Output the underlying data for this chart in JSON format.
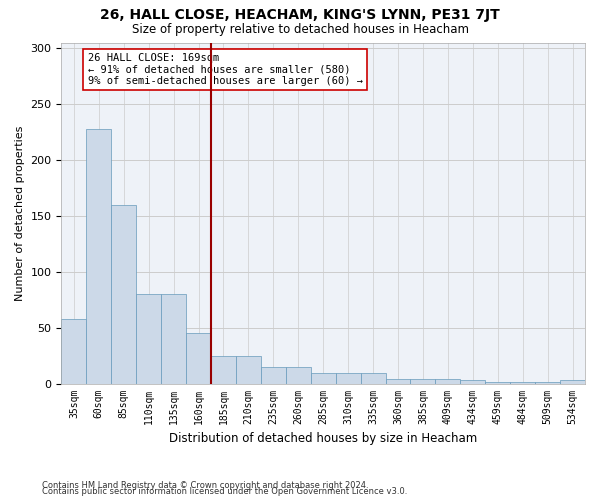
{
  "title": "26, HALL CLOSE, HEACHAM, KING'S LYNN, PE31 7JT",
  "subtitle": "Size of property relative to detached houses in Heacham",
  "xlabel": "Distribution of detached houses by size in Heacham",
  "ylabel": "Number of detached properties",
  "categories": [
    "35sqm",
    "60sqm",
    "85sqm",
    "110sqm",
    "135sqm",
    "160sqm",
    "185sqm",
    "210sqm",
    "235sqm",
    "260sqm",
    "285sqm",
    "310sqm",
    "335sqm",
    "360sqm",
    "385sqm",
    "409sqm",
    "434sqm",
    "459sqm",
    "484sqm",
    "509sqm",
    "534sqm"
  ],
  "values": [
    58,
    228,
    160,
    80,
    80,
    45,
    25,
    25,
    15,
    15,
    9,
    9,
    9,
    4,
    4,
    4,
    3,
    1,
    1,
    1,
    3
  ],
  "bar_color": "#ccd9e8",
  "bar_edge_color": "#6699bb",
  "vline_x_index": 6,
  "vline_color": "#990000",
  "annotation_text": "26 HALL CLOSE: 169sqm\n← 91% of detached houses are smaller (580)\n9% of semi-detached houses are larger (60) →",
  "annotation_box_color": "#ffffff",
  "annotation_box_edge": "#cc0000",
  "ylim": [
    0,
    305
  ],
  "yticks": [
    0,
    50,
    100,
    150,
    200,
    250,
    300
  ],
  "footer1": "Contains HM Land Registry data © Crown copyright and database right 2024.",
  "footer2": "Contains public sector information licensed under the Open Government Licence v3.0.",
  "bg_color": "#ffffff",
  "plot_bg_color": "#eef2f8",
  "grid_color": "#cccccc"
}
